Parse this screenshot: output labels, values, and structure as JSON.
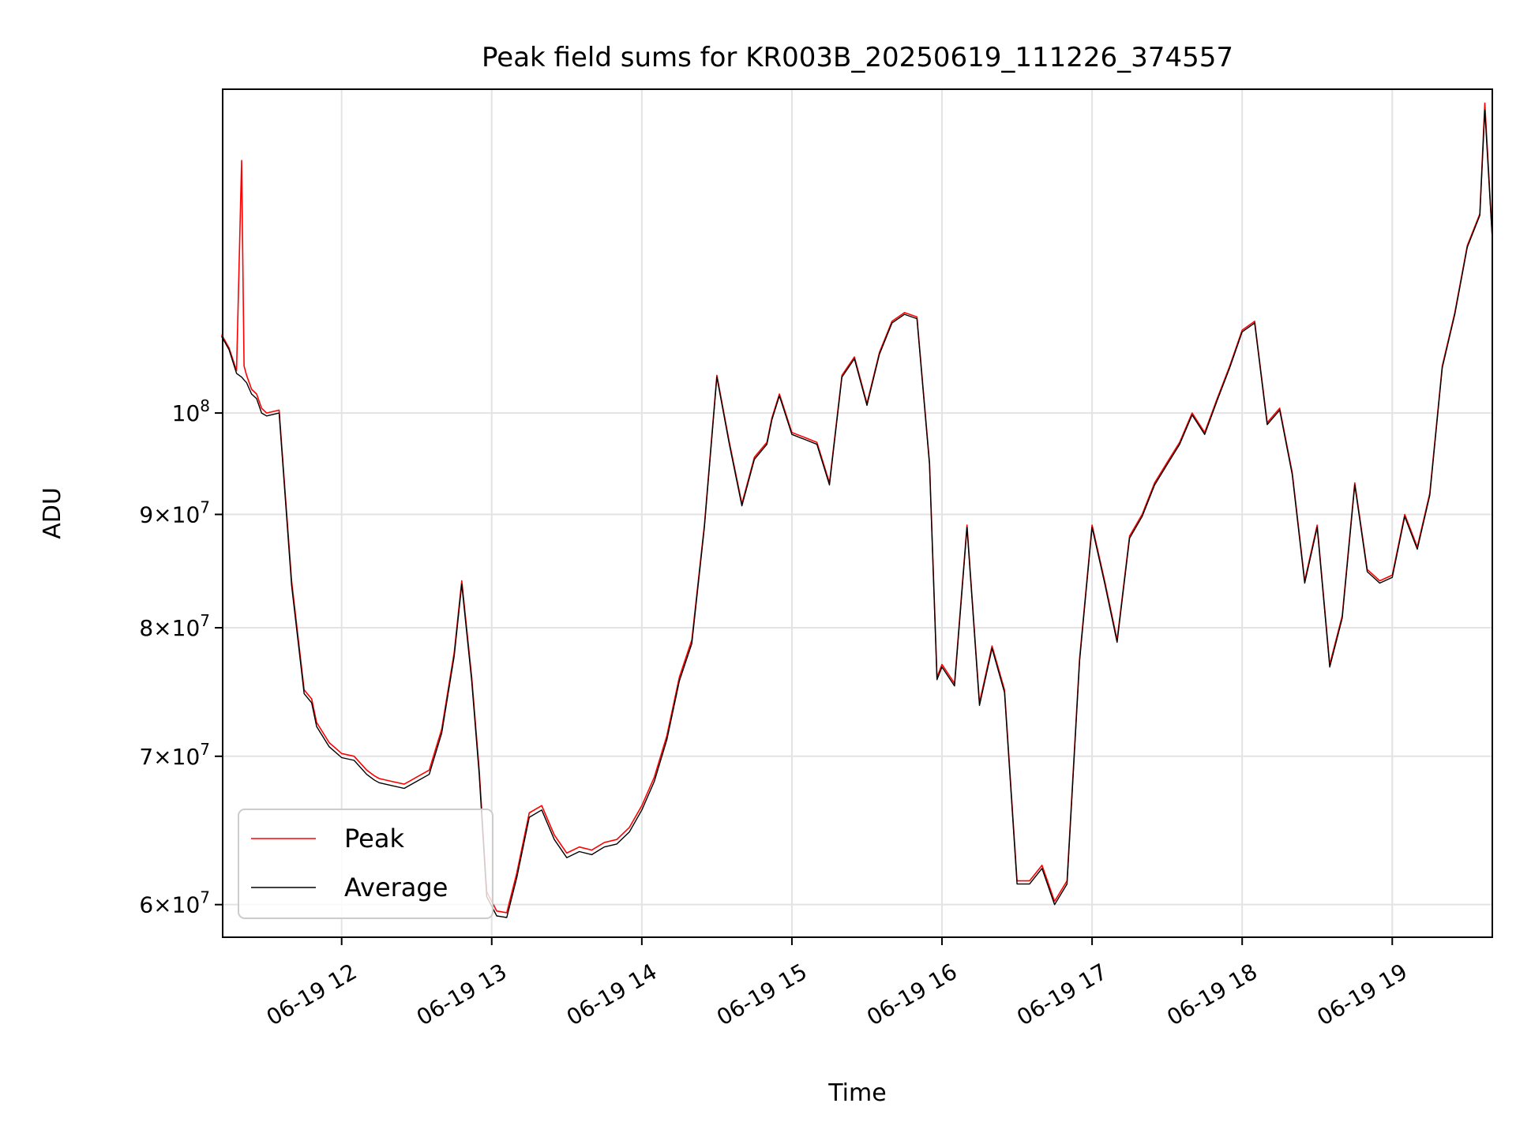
{
  "chart_data": {
    "type": "line",
    "title": "Peak field sums for KR003B_20250619_111226_374557",
    "xlabel": "Time",
    "ylabel": "ADU",
    "yscale": "log",
    "grid": true,
    "legend_position": "lower-left",
    "xlim": [
      "2025-06-19T11:12:26",
      "2025-06-19T19:40:00"
    ],
    "ylim": [
      58000000,
      140000000
    ],
    "x_ticks": [
      {
        "t": "2025-06-19T12:00",
        "label": "06-19 12"
      },
      {
        "t": "2025-06-19T13:00",
        "label": "06-19 13"
      },
      {
        "t": "2025-06-19T14:00",
        "label": "06-19 14"
      },
      {
        "t": "2025-06-19T15:00",
        "label": "06-19 15"
      },
      {
        "t": "2025-06-19T16:00",
        "label": "06-19 16"
      },
      {
        "t": "2025-06-19T17:00",
        "label": "06-19 17"
      },
      {
        "t": "2025-06-19T18:00",
        "label": "06-19 18"
      },
      {
        "t": "2025-06-19T19:00",
        "label": "06-19 19"
      }
    ],
    "y_ticks": [
      {
        "v": 60000000,
        "mant": "6",
        "exp": "7"
      },
      {
        "v": 70000000,
        "mant": "7",
        "exp": "7"
      },
      {
        "v": 80000000,
        "mant": "8",
        "exp": "7"
      },
      {
        "v": 90000000,
        "mant": "9",
        "exp": "7"
      },
      {
        "v": 100000000,
        "mant": "",
        "exp": "8"
      }
    ],
    "series": [
      {
        "name": "Peak",
        "color": "#ff0000",
        "x": [
          "11:12",
          "11:15",
          "11:18",
          "11:20",
          "11:21",
          "11:22",
          "11:24",
          "11:26",
          "11:28",
          "11:30",
          "11:35",
          "11:40",
          "11:45",
          "11:48",
          "11:50",
          "11:55",
          "12:00",
          "12:05",
          "12:10",
          "12:13",
          "12:15",
          "12:20",
          "12:25",
          "12:28",
          "12:30",
          "12:35",
          "12:40",
          "12:45",
          "12:48",
          "12:52",
          "12:55",
          "12:58",
          "13:02",
          "13:06",
          "13:10",
          "13:15",
          "13:20",
          "13:25",
          "13:30",
          "13:35",
          "13:40",
          "13:45",
          "13:50",
          "13:55",
          "14:00",
          "14:05",
          "14:10",
          "14:15",
          "14:20",
          "14:25",
          "14:30",
          "14:35",
          "14:40",
          "14:45",
          "14:50",
          "14:52",
          "14:55",
          "15:00",
          "15:05",
          "15:10",
          "15:15",
          "15:20",
          "15:25",
          "15:30",
          "15:35",
          "15:40",
          "15:45",
          "15:50",
          "15:55",
          "15:58",
          "16:00",
          "16:05",
          "16:10",
          "16:15",
          "16:20",
          "16:25",
          "16:30",
          "16:35",
          "16:40",
          "16:45",
          "16:50",
          "16:55",
          "17:00",
          "17:05",
          "17:10",
          "17:15",
          "17:20",
          "17:25",
          "17:30",
          "17:35",
          "17:40",
          "17:45",
          "17:50",
          "17:55",
          "18:00",
          "18:05",
          "18:10",
          "18:15",
          "18:20",
          "18:25",
          "18:30",
          "18:35",
          "18:40",
          "18:45",
          "18:50",
          "18:55",
          "19:00",
          "19:05",
          "19:10",
          "19:15",
          "19:20",
          "19:25",
          "19:30",
          "19:35",
          "19:37",
          "19:40"
        ],
        "values": [
          108500000,
          107000000,
          104500000,
          130000000,
          105000000,
          104000000,
          102500000,
          102000000,
          100500000,
          100000000,
          100300000,
          84000000,
          75000000,
          74300000,
          72500000,
          71000000,
          70200000,
          70000000,
          69000000,
          68600000,
          68400000,
          68200000,
          68000000,
          68300000,
          68500000,
          69000000,
          72000000,
          78000000,
          84000000,
          76000000,
          69000000,
          60800000,
          59600000,
          59500000,
          62000000,
          66000000,
          66500000,
          64500000,
          63300000,
          63700000,
          63500000,
          64000000,
          64200000,
          65000000,
          66500000,
          68500000,
          71500000,
          76000000,
          79000000,
          89000000,
          104000000,
          97000000,
          91000000,
          95500000,
          97000000,
          99500000,
          102000000,
          98000000,
          97500000,
          97000000,
          93000000,
          104000000,
          106000000,
          101000000,
          106500000,
          110000000,
          111000000,
          110500000,
          95000000,
          76000000,
          77000000,
          75500000,
          89000000,
          74000000,
          78500000,
          75000000,
          61500000,
          61500000,
          62500000,
          60200000,
          61500000,
          77500000,
          89000000,
          84000000,
          79000000,
          88000000,
          90000000,
          93000000,
          95000000,
          97000000,
          100000000,
          98000000,
          101500000,
          105000000,
          109000000,
          110000000,
          99000000,
          100500000,
          94000000,
          84000000,
          89000000,
          77000000,
          81000000,
          93000000,
          85000000,
          84000000,
          84500000,
          90000000,
          87000000,
          92000000,
          105000000,
          111000000,
          119000000,
          123000000,
          138000000,
          120000000
        ]
      },
      {
        "name": "Average",
        "color": "#000000",
        "x": [
          "11:12",
          "11:15",
          "11:18",
          "11:20",
          "11:21",
          "11:22",
          "11:24",
          "11:26",
          "11:28",
          "11:30",
          "11:35",
          "11:40",
          "11:45",
          "11:48",
          "11:50",
          "11:55",
          "12:00",
          "12:05",
          "12:10",
          "12:13",
          "12:15",
          "12:20",
          "12:25",
          "12:28",
          "12:30",
          "12:35",
          "12:40",
          "12:45",
          "12:48",
          "12:52",
          "12:55",
          "12:58",
          "13:02",
          "13:06",
          "13:10",
          "13:15",
          "13:20",
          "13:25",
          "13:30",
          "13:35",
          "13:40",
          "13:45",
          "13:50",
          "13:55",
          "14:00",
          "14:05",
          "14:10",
          "14:15",
          "14:20",
          "14:25",
          "14:30",
          "14:35",
          "14:40",
          "14:45",
          "14:50",
          "14:52",
          "14:55",
          "15:00",
          "15:05",
          "15:10",
          "15:15",
          "15:20",
          "15:25",
          "15:30",
          "15:35",
          "15:40",
          "15:45",
          "15:50",
          "15:55",
          "15:58",
          "16:00",
          "16:05",
          "16:10",
          "16:15",
          "16:20",
          "16:25",
          "16:30",
          "16:35",
          "16:40",
          "16:45",
          "16:50",
          "16:55",
          "17:00",
          "17:05",
          "17:10",
          "17:15",
          "17:20",
          "17:25",
          "17:30",
          "17:35",
          "17:40",
          "17:45",
          "17:50",
          "17:55",
          "18:00",
          "18:05",
          "18:10",
          "18:15",
          "18:20",
          "18:25",
          "18:30",
          "18:35",
          "18:40",
          "18:45",
          "18:50",
          "18:55",
          "19:00",
          "19:05",
          "19:10",
          "19:15",
          "19:20",
          "19:25",
          "19:30",
          "19:35",
          "19:37",
          "19:40"
        ],
        "values": [
          108300000,
          106800000,
          104200000,
          103800000,
          103500000,
          103200000,
          102000000,
          101500000,
          100000000,
          99700000,
          100000000,
          83600000,
          74700000,
          74000000,
          72200000,
          70700000,
          69900000,
          69700000,
          68700000,
          68300000,
          68100000,
          67900000,
          67700000,
          68000000,
          68200000,
          68700000,
          71700000,
          77700000,
          83700000,
          75700000,
          68700000,
          60500000,
          59300000,
          59200000,
          61700000,
          65700000,
          66200000,
          64200000,
          63000000,
          63400000,
          63200000,
          63700000,
          63900000,
          64700000,
          66200000,
          68200000,
          71200000,
          75700000,
          78700000,
          88800000,
          103800000,
          96800000,
          90800000,
          95300000,
          96800000,
          99300000,
          101800000,
          97800000,
          97300000,
          96800000,
          92800000,
          103800000,
          105800000,
          100800000,
          106300000,
          109800000,
          110800000,
          110300000,
          94800000,
          75800000,
          76800000,
          75300000,
          88800000,
          73800000,
          78300000,
          74800000,
          61300000,
          61300000,
          62300000,
          60000000,
          61300000,
          77300000,
          88800000,
          83800000,
          78800000,
          87800000,
          89800000,
          92800000,
          94800000,
          96800000,
          99800000,
          97800000,
          101300000,
          104800000,
          108800000,
          109800000,
          98800000,
          100300000,
          93800000,
          83800000,
          88800000,
          76800000,
          80800000,
          92800000,
          84800000,
          83800000,
          84300000,
          89800000,
          86800000,
          91800000,
          104800000,
          110800000,
          118800000,
          122800000,
          137000000,
          119800000
        ]
      }
    ]
  }
}
